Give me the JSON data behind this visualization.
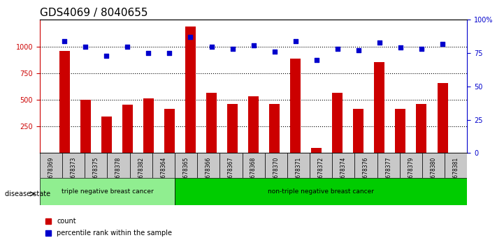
{
  "title": "GDS4069 / 8040655",
  "samples": [
    "GSM678369",
    "GSM678373",
    "GSM678375",
    "GSM678378",
    "GSM678382",
    "GSM678364",
    "GSM678365",
    "GSM678366",
    "GSM678367",
    "GSM678368",
    "GSM678370",
    "GSM678371",
    "GSM678372",
    "GSM678374",
    "GSM678376",
    "GSM678377",
    "GSM678379",
    "GSM678380",
    "GSM678381"
  ],
  "counts": [
    960,
    500,
    340,
    455,
    510,
    415,
    1185,
    565,
    460,
    530,
    460,
    885,
    50,
    565,
    415,
    855,
    415,
    460,
    660
  ],
  "percentiles": [
    84,
    80,
    73,
    80,
    75,
    75,
    87,
    80,
    78,
    81,
    76,
    84,
    70,
    78,
    77,
    83,
    79,
    78,
    82
  ],
  "triple_neg_count": 6,
  "left_label": "triple negative breast cancer",
  "right_label": "non-triple negative breast cancer",
  "disease_state_label": "disease state",
  "legend_count": "count",
  "legend_percentile": "percentile rank within the sample",
  "ylim_left": [
    0,
    1250
  ],
  "ylim_right": [
    0,
    100
  ],
  "yticks_left": [
    250,
    500,
    750,
    1000
  ],
  "yticks_right": [
    0,
    25,
    50,
    75,
    100
  ],
  "bar_color": "#cc0000",
  "dot_color": "#0000cc",
  "bg_color": "#ffffff",
  "plot_bg": "#ffffff",
  "grid_color": "#000000",
  "triple_neg_bg": "#90ee90",
  "non_triple_neg_bg": "#00cc00",
  "tick_bg": "#c8c8c8",
  "title_fontsize": 11,
  "label_fontsize": 8,
  "tick_fontsize": 7
}
